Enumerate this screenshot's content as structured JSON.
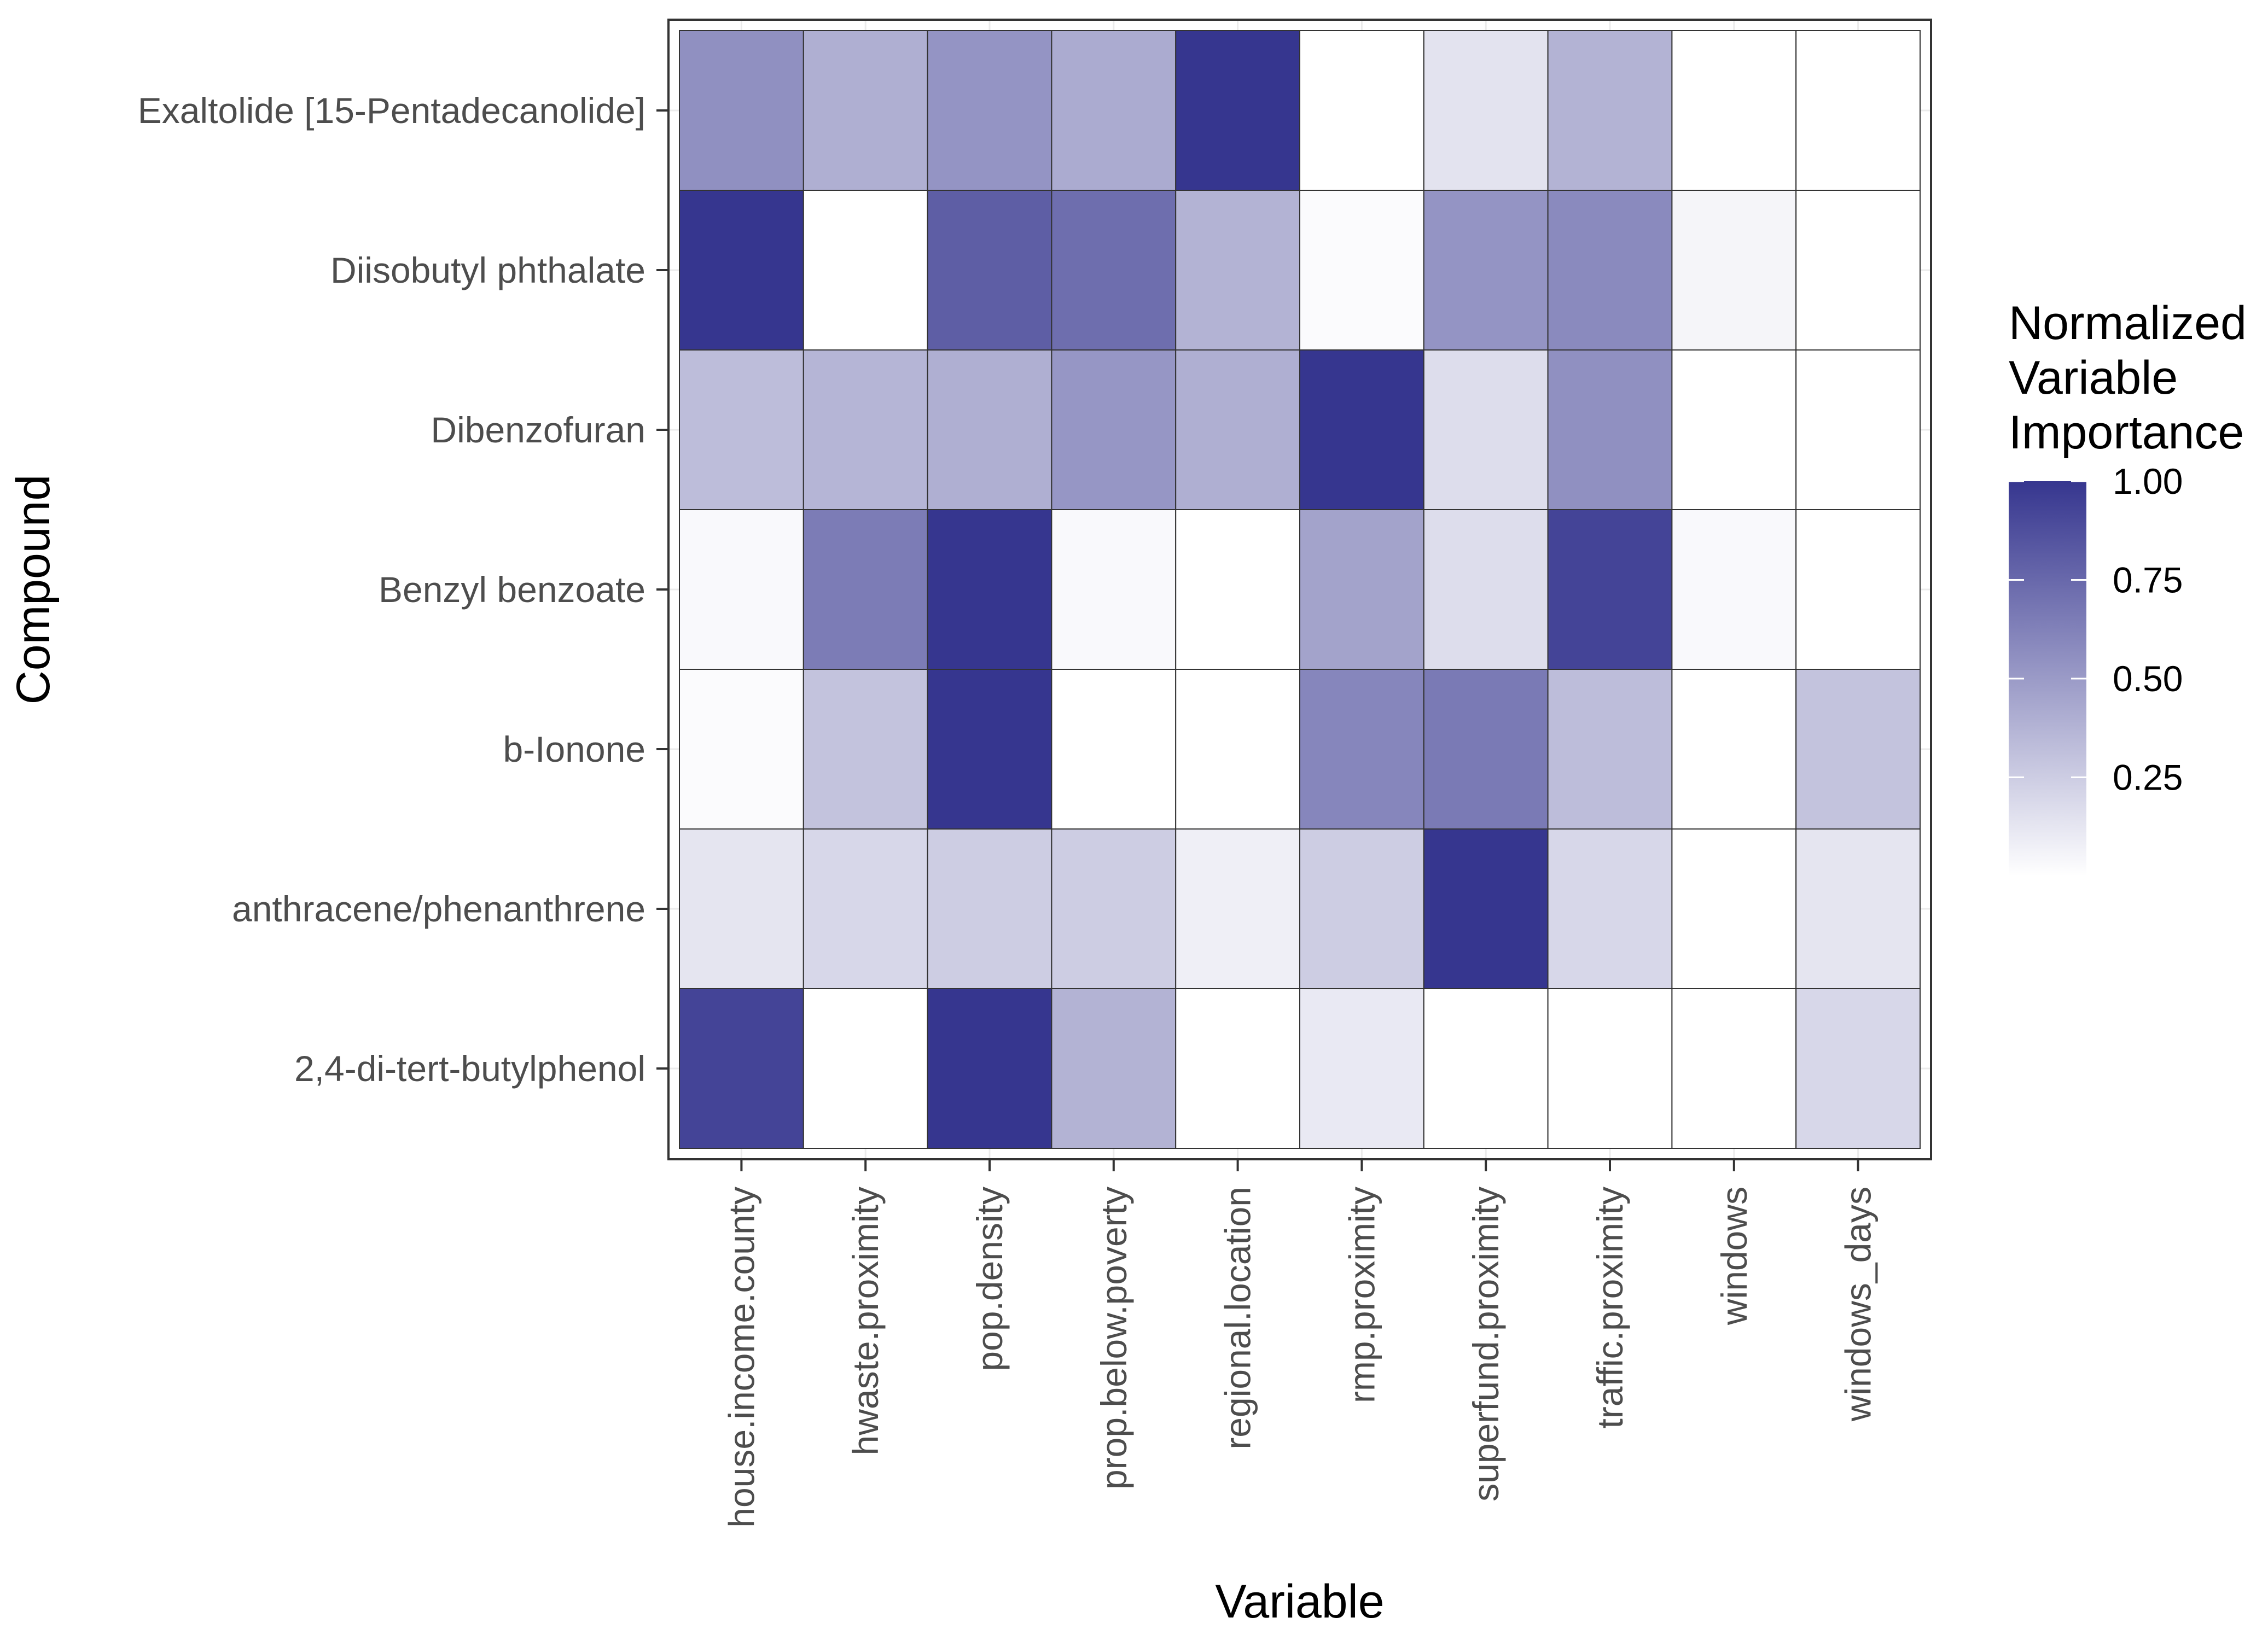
{
  "chart_data": {
    "type": "heatmap",
    "xlabel": "Variable",
    "ylabel": "Compound",
    "x_categories": [
      "house.income.county",
      "hwaste.proximity",
      "pop.density",
      "prop.below.poverty",
      "regional.location",
      "rmp.proximity",
      "superfund.proximity",
      "traffic.proximity",
      "windows",
      "windows_days"
    ],
    "y_categories": [
      "Exaltolide [15-Pentadecanolide]",
      "Diisobutyl phthalate",
      "Dibenzofuran",
      "Benzyl benzoate",
      "b-Ionone",
      "anthracene/phenanthrene",
      "2,4-di-tert-butylphenol"
    ],
    "values": [
      [
        0.55,
        0.4,
        0.53,
        0.42,
        1.0,
        0.0,
        0.14,
        0.38,
        0.0,
        0.0
      ],
      [
        1.0,
        0.0,
        0.8,
        0.72,
        0.38,
        0.02,
        0.53,
        0.58,
        0.05,
        0.0
      ],
      [
        0.33,
        0.37,
        0.4,
        0.52,
        0.4,
        1.0,
        0.17,
        0.55,
        0.0,
        0.0
      ],
      [
        0.03,
        0.65,
        1.0,
        0.03,
        0.0,
        0.46,
        0.17,
        0.93,
        0.03,
        0.0
      ],
      [
        0.02,
        0.3,
        1.0,
        0.0,
        0.0,
        0.6,
        0.66,
        0.33,
        0.0,
        0.3
      ],
      [
        0.13,
        0.2,
        0.25,
        0.25,
        0.08,
        0.25,
        1.0,
        0.2,
        0.0,
        0.13
      ],
      [
        0.93,
        0.0,
        1.0,
        0.38,
        0.0,
        0.11,
        0.0,
        0.0,
        0.0,
        0.2
      ]
    ],
    "legend": {
      "title_lines": [
        "Normalized",
        "Variable",
        "Importance"
      ],
      "ticks": [
        1.0,
        0.75,
        0.5,
        0.25
      ],
      "tick_labels": [
        "1.00",
        "0.75",
        "0.50",
        "0.25"
      ],
      "range": [
        0,
        1
      ],
      "color_low": "#ffffff",
      "color_high": "#36368f"
    }
  }
}
